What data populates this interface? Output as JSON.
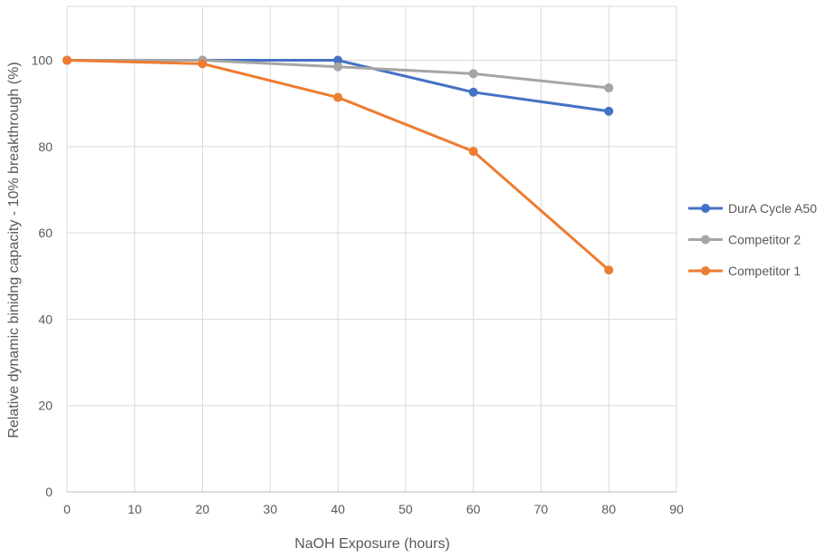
{
  "chart_data": {
    "type": "line",
    "title": "",
    "xlabel": "NaOH Exposure (hours)",
    "ylabel": "Relative dynamic binidng capacity - 10% breakthrough (%)",
    "xlim": [
      0,
      90
    ],
    "ylim": [
      0,
      112.5
    ],
    "xticks": [
      0,
      10,
      20,
      30,
      40,
      50,
      60,
      70,
      80,
      90
    ],
    "yticks": [
      0,
      20,
      40,
      60,
      80,
      100
    ],
    "grid": true,
    "legend_position": "right",
    "x": [
      0,
      20,
      40,
      60,
      80
    ],
    "series": [
      {
        "name": "DurA Cycle A50",
        "color": "#4472C4",
        "values": [
          100,
          100,
          100,
          92.6,
          88.2
        ]
      },
      {
        "name": "Competitor 2",
        "color": "#A5A5A5",
        "values": [
          100,
          100,
          98.5,
          96.9,
          93.6
        ]
      },
      {
        "name": "Competitor 1",
        "color": "#ED7D31",
        "values": [
          100,
          99.2,
          91.4,
          78.9,
          51.4
        ]
      }
    ]
  }
}
